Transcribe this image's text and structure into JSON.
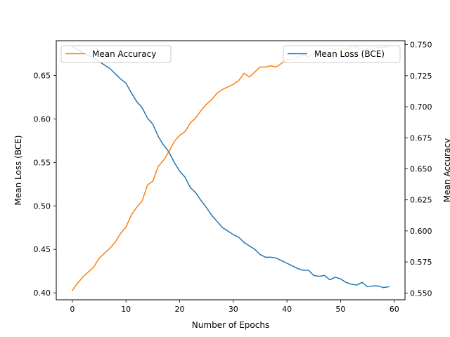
{
  "chart_data": {
    "type": "line",
    "xlabel": "Number of Epochs",
    "ylabel_left": "Mean Loss (BCE)",
    "ylabel_right": "Mean Accuracy",
    "xlim": [
      -3,
      62
    ],
    "ylim_left": [
      0.392,
      0.69
    ],
    "ylim_right": [
      0.5445,
      0.7532
    ],
    "x_ticks": [
      0,
      10,
      20,
      30,
      40,
      50,
      60
    ],
    "y_ticks_left": [
      0.4,
      0.45,
      0.5,
      0.55,
      0.6,
      0.65
    ],
    "y_ticks_right": [
      0.55,
      0.575,
      0.6,
      0.625,
      0.65,
      0.675,
      0.7,
      0.725,
      0.75
    ],
    "grid": false,
    "x": [
      0,
      1,
      2,
      3,
      4,
      5,
      6,
      7,
      8,
      9,
      10,
      11,
      12,
      13,
      14,
      15,
      16,
      17,
      18,
      19,
      20,
      21,
      22,
      23,
      24,
      25,
      26,
      27,
      28,
      29,
      30,
      31,
      32,
      33,
      34,
      35,
      36,
      37,
      38,
      39,
      40,
      41,
      42,
      43,
      44,
      45,
      46,
      47,
      48,
      49,
      50,
      51,
      52,
      53,
      54,
      55,
      56,
      57,
      58,
      59
    ],
    "series": [
      {
        "name": "Mean Loss (BCE)",
        "axis": "left",
        "color": "#1f77b4",
        "legend_position": "upper right",
        "values": [
          0.683,
          0.68,
          0.676,
          0.673,
          0.67,
          0.666,
          0.662,
          0.658,
          0.652,
          0.646,
          0.641,
          0.63,
          0.62,
          0.613,
          0.601,
          0.594,
          0.58,
          0.57,
          0.562,
          0.55,
          0.54,
          0.533,
          0.521,
          0.515,
          0.506,
          0.498,
          0.489,
          0.482,
          0.475,
          0.471,
          0.467,
          0.464,
          0.458,
          0.454,
          0.45,
          0.444,
          0.441,
          0.441,
          0.44,
          0.437,
          0.434,
          0.431,
          0.428,
          0.426,
          0.426,
          0.42,
          0.419,
          0.42,
          0.415,
          0.418,
          0.416,
          0.412,
          0.41,
          0.409,
          0.412,
          0.407,
          0.408,
          0.408,
          0.406,
          0.407
        ]
      },
      {
        "name": "Mean Accuracy",
        "axis": "right",
        "color": "#ff7f0e",
        "legend_position": "upper left",
        "values": [
          0.552,
          0.558,
          0.563,
          0.567,
          0.571,
          0.578,
          0.582,
          0.586,
          0.591,
          0.598,
          0.603,
          0.613,
          0.619,
          0.624,
          0.637,
          0.64,
          0.652,
          0.657,
          0.664,
          0.672,
          0.677,
          0.68,
          0.687,
          0.691,
          0.697,
          0.702,
          0.706,
          0.711,
          0.714,
          0.716,
          0.718,
          0.721,
          0.727,
          0.724,
          0.728,
          0.732,
          0.732,
          0.733,
          0.732,
          0.735,
          0.738,
          0.738,
          0.74,
          0.742,
          0.74,
          0.743,
          0.745,
          0.744,
          0.747,
          0.746,
          0.747,
          0.746,
          0.749,
          0.748,
          0.745,
          0.747,
          0.747,
          0.748,
          0.748,
          0.748
        ]
      }
    ]
  }
}
